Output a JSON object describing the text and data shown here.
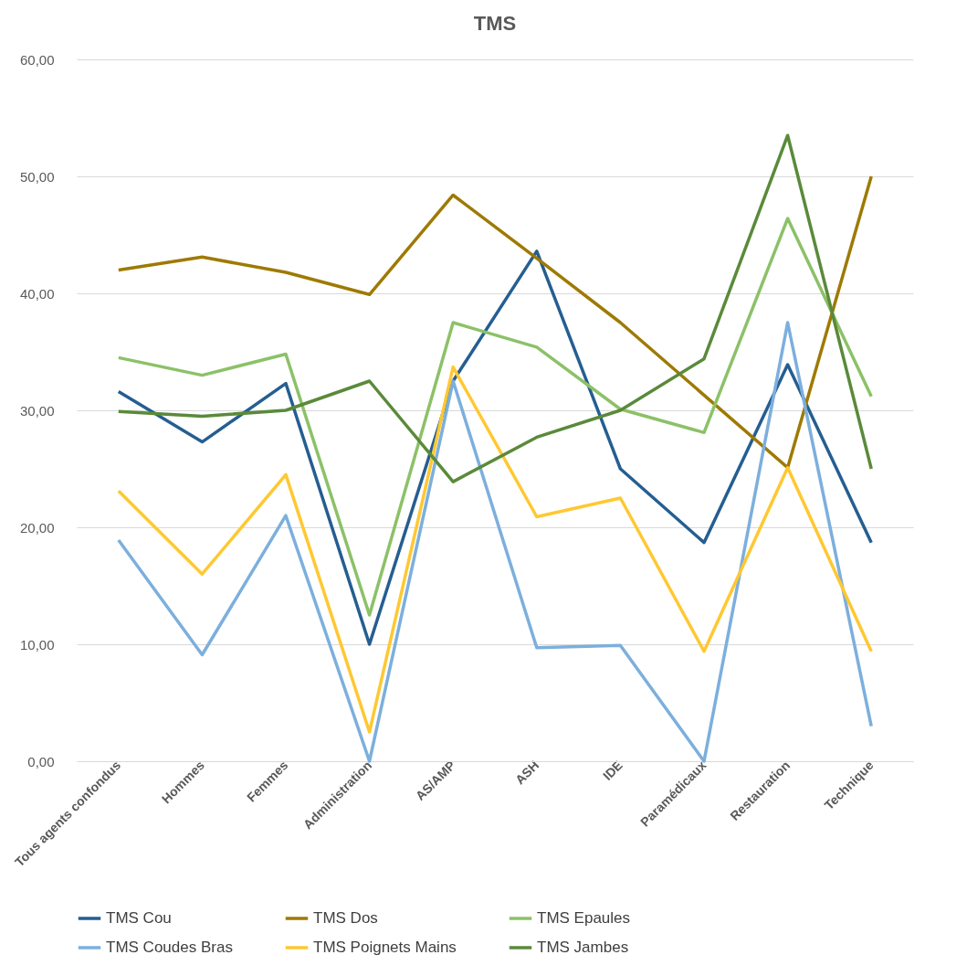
{
  "chart_data": {
    "type": "line",
    "title": "TMS",
    "categories": [
      "Tous agents confondus",
      "Hommes",
      "Femmes",
      "Administration",
      "AS/AMP",
      "ASH",
      "IDE",
      "Paramédicaux",
      "Restauration",
      "Technique"
    ],
    "series": [
      {
        "name": "TMS Cou",
        "color": "#255e91",
        "values": [
          31.6,
          27.3,
          32.3,
          10.0,
          32.5,
          43.6,
          25.0,
          18.7,
          33.9,
          18.7
        ]
      },
      {
        "name": "TMS Dos",
        "color": "#9e7a04",
        "values": [
          42.0,
          43.1,
          41.8,
          39.9,
          48.4,
          43.0,
          37.5,
          31.3,
          25.1,
          50.0
        ]
      },
      {
        "name": "TMS Epaules",
        "color": "#8cc168",
        "values": [
          34.5,
          33.0,
          34.8,
          12.5,
          37.5,
          35.4,
          30.1,
          28.1,
          46.4,
          31.2
        ]
      },
      {
        "name": "TMS Coudes Bras",
        "color": "#7cafdd",
        "values": [
          18.9,
          9.1,
          21.0,
          0,
          32.5,
          9.7,
          9.9,
          0,
          37.5,
          3.0
        ]
      },
      {
        "name": "TMS Poignets Mains",
        "color": "#ffc832",
        "values": [
          23.1,
          16.0,
          24.5,
          2.5,
          33.7,
          20.9,
          22.5,
          9.4,
          25.1,
          9.4
        ]
      },
      {
        "name": "TMS Jambes",
        "color": "#5a8a3a",
        "values": [
          29.9,
          29.5,
          30.0,
          32.5,
          23.9,
          27.7,
          30.0,
          34.4,
          53.5,
          25.0
        ]
      }
    ],
    "ylim": [
      0,
      60
    ],
    "yticks": [
      {
        "value": 0,
        "label": "0,00"
      },
      {
        "value": 10,
        "label": "10,00"
      },
      {
        "value": 20,
        "label": "20,00"
      },
      {
        "value": 30,
        "label": "30,00"
      },
      {
        "value": 40,
        "label": "40,00"
      },
      {
        "value": 50,
        "label": "50,00"
      },
      {
        "value": 60,
        "label": "60,00"
      }
    ],
    "grid": "y",
    "legend": "bottom",
    "marker": "none",
    "line_style": "solid"
  }
}
